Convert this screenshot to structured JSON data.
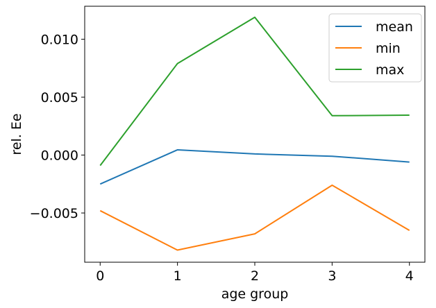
{
  "chart_data": {
    "type": "line",
    "title": "",
    "xlabel": "age group",
    "ylabel": "rel. Ee",
    "x": [
      0,
      1,
      2,
      3,
      4
    ],
    "xlim": [
      -0.2,
      4.2
    ],
    "ylim": [
      -0.00925,
      0.01285
    ],
    "xticks": [
      0,
      1,
      2,
      3,
      4
    ],
    "xtick_labels": [
      "0",
      "1",
      "2",
      "3",
      "4"
    ],
    "yticks": [
      -0.005,
      0.0,
      0.005,
      0.01
    ],
    "ytick_labels": [
      "−0.005",
      "0.000",
      "0.005",
      "0.010"
    ],
    "grid": false,
    "legend_position": "top-right",
    "series": [
      {
        "name": "mean",
        "color": "#1f77b4",
        "values": [
          -0.0025,
          0.00045,
          0.0001,
          -0.0001,
          -0.0006
        ]
      },
      {
        "name": "min",
        "color": "#ff7f0e",
        "values": [
          -0.0048,
          -0.0082,
          -0.0068,
          -0.0026,
          -0.0065
        ]
      },
      {
        "name": "max",
        "color": "#2ca02c",
        "values": [
          -0.0009,
          0.0079,
          0.0119,
          0.0034,
          0.00345
        ]
      }
    ]
  }
}
